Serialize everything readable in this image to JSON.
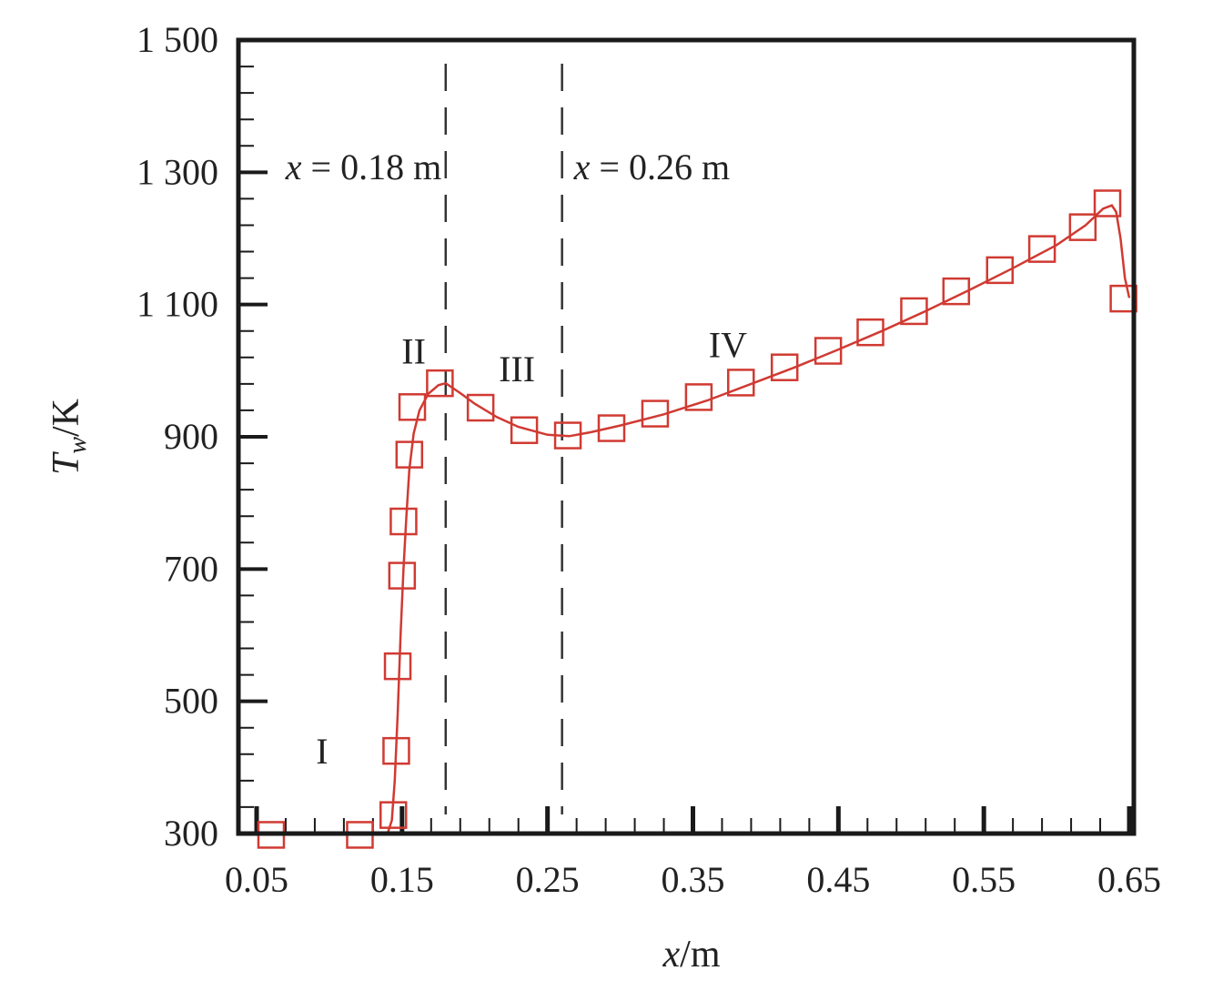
{
  "chart_data": {
    "type": "line",
    "xlabel": {
      "var": "x",
      "unit": "m"
    },
    "ylabel": {
      "var": "T",
      "sub": "w",
      "unit": "K"
    },
    "xlim": [
      0.05,
      0.65
    ],
    "ylim": [
      300,
      1500
    ],
    "x_ticks": [
      0.05,
      0.15,
      0.25,
      0.35,
      0.45,
      0.55,
      0.65
    ],
    "x_tick_labels": [
      "0.05",
      "0.15",
      "0.25",
      "0.35",
      "0.45",
      "0.55",
      "0.65"
    ],
    "y_ticks": [
      300,
      500,
      700,
      900,
      1100,
      1300,
      1500
    ],
    "y_tick_labels": [
      "300",
      "500",
      "700",
      "900",
      "1 100",
      "1 300",
      "1 500"
    ],
    "grid": false,
    "series": [
      {
        "color": "#d03a32",
        "marker": "square",
        "curve": [
          [
            0.14,
            300
          ],
          [
            0.143,
            320
          ],
          [
            0.145,
            380
          ],
          [
            0.147,
            480
          ],
          [
            0.149,
            600
          ],
          [
            0.151,
            700
          ],
          [
            0.153,
            780
          ],
          [
            0.155,
            850
          ],
          [
            0.158,
            905
          ],
          [
            0.162,
            940
          ],
          [
            0.168,
            965
          ],
          [
            0.175,
            978
          ],
          [
            0.18,
            981
          ],
          [
            0.19,
            966
          ],
          [
            0.2,
            950
          ],
          [
            0.215,
            930
          ],
          [
            0.23,
            915
          ],
          [
            0.25,
            903
          ],
          [
            0.265,
            901
          ],
          [
            0.28,
            907
          ],
          [
            0.3,
            917
          ],
          [
            0.33,
            934
          ],
          [
            0.36,
            955
          ],
          [
            0.39,
            980
          ],
          [
            0.42,
            1005
          ],
          [
            0.45,
            1032
          ],
          [
            0.48,
            1060
          ],
          [
            0.51,
            1090
          ],
          [
            0.54,
            1122
          ],
          [
            0.57,
            1155
          ],
          [
            0.6,
            1190
          ],
          [
            0.62,
            1220
          ],
          [
            0.632,
            1245
          ],
          [
            0.638,
            1250
          ],
          [
            0.641,
            1240
          ],
          [
            0.644,
            1200
          ],
          [
            0.647,
            1140
          ],
          [
            0.65,
            1110
          ]
        ],
        "points": [
          [
            0.06,
            298
          ],
          [
            0.121,
            298
          ],
          [
            0.144,
            328
          ],
          [
            0.146,
            425
          ],
          [
            0.147,
            553
          ],
          [
            0.15,
            690
          ],
          [
            0.151,
            772
          ],
          [
            0.155,
            873
          ],
          [
            0.157,
            945
          ],
          [
            0.176,
            981
          ],
          [
            0.204,
            944
          ],
          [
            0.234,
            910
          ],
          [
            0.264,
            902
          ],
          [
            0.294,
            913
          ],
          [
            0.324,
            935
          ],
          [
            0.354,
            960
          ],
          [
            0.383,
            982
          ],
          [
            0.413,
            1005
          ],
          [
            0.443,
            1030
          ],
          [
            0.472,
            1058
          ],
          [
            0.502,
            1090
          ],
          [
            0.531,
            1120
          ],
          [
            0.561,
            1152
          ],
          [
            0.59,
            1184
          ],
          [
            0.618,
            1217
          ],
          [
            0.635,
            1253
          ],
          [
            0.646,
            1109
          ]
        ]
      }
    ],
    "reference_lines": [
      {
        "x": 0.18,
        "label_var": "x",
        "label_value": "= 0.18 m"
      },
      {
        "x": 0.26,
        "label_var": "x",
        "label_value": "= 0.26 m"
      }
    ],
    "region_labels": [
      {
        "text": "I",
        "x": 0.095,
        "y": 425
      },
      {
        "text": "II",
        "x": 0.158,
        "y": 1030
      },
      {
        "text": "III",
        "x": 0.229,
        "y": 1003
      },
      {
        "text": "IV",
        "x": 0.374,
        "y": 1040
      }
    ]
  }
}
